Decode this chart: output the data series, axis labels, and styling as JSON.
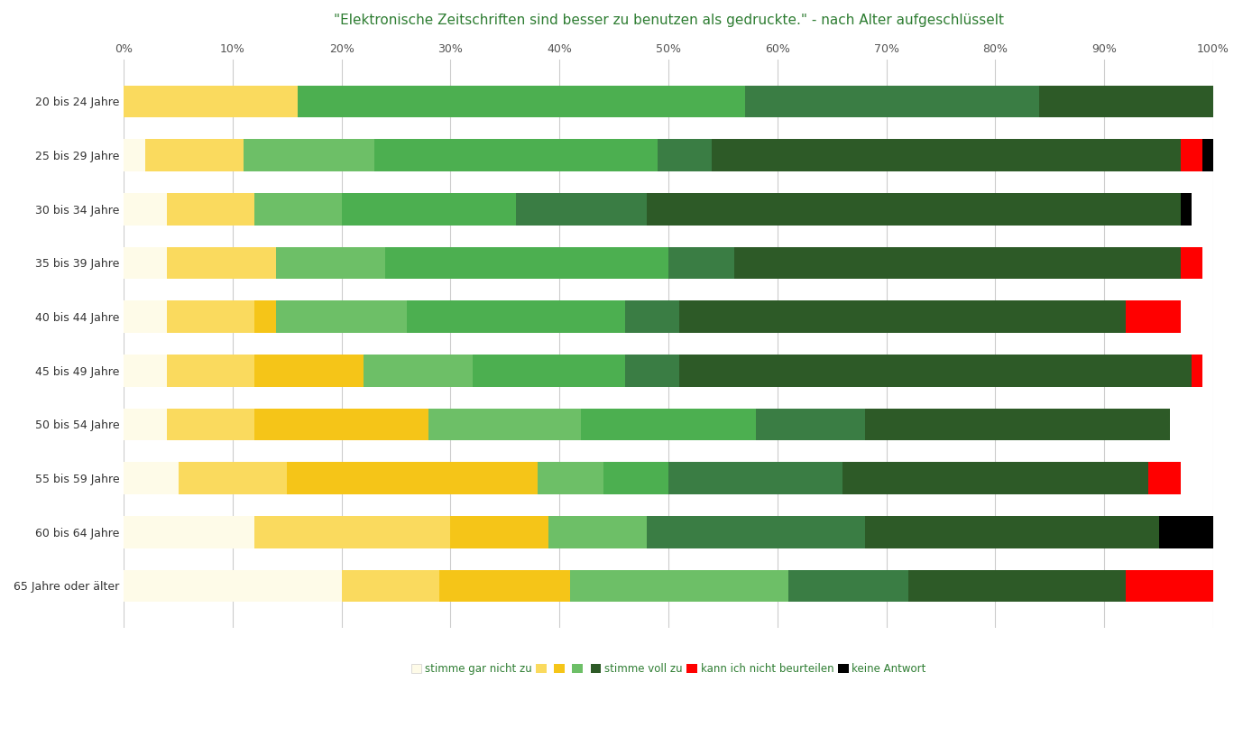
{
  "title": "\"Elektronische Zeitschriften sind besser zu benutzen als gedruckte.\" - nach Alter aufgeschlüsselt",
  "categories": [
    "20 bis 24 Jahre",
    "25 bis 29 Jahre",
    "30 bis 34 Jahre",
    "35 bis 39 Jahre",
    "40 bis 44 Jahre",
    "45 bis 49 Jahre",
    "50 bis 54 Jahre",
    "55 bis 59 Jahre",
    "60 bis 64 Jahre",
    "65 Jahre oder älter"
  ],
  "segments": {
    "col1_very_light": [
      0,
      2,
      4,
      4,
      4,
      4,
      4,
      5,
      12,
      20
    ],
    "col2_light": [
      16,
      9,
      8,
      10,
      8,
      8,
      8,
      10,
      18,
      9
    ],
    "col3_mid_yellow": [
      0,
      0,
      0,
      0,
      2,
      10,
      16,
      23,
      9,
      12
    ],
    "col4_light_green": [
      0,
      12,
      8,
      10,
      12,
      10,
      14,
      6,
      9,
      20
    ],
    "col5_mid_green": [
      41,
      26,
      16,
      26,
      20,
      14,
      16,
      6,
      0,
      0
    ],
    "col6_dark_green1": [
      27,
      5,
      12,
      6,
      5,
      5,
      10,
      16,
      20,
      11
    ],
    "col6_dark_green2": [
      16,
      43,
      49,
      41,
      41,
      47,
      28,
      28,
      27,
      20
    ],
    "col7_red": [
      0,
      2,
      0,
      2,
      5,
      1,
      0,
      3,
      0,
      8
    ],
    "col8_black": [
      0,
      1,
      1,
      0,
      0,
      0,
      0,
      0,
      5,
      0
    ]
  },
  "colors": {
    "col1_very_light": "#FEFBE8",
    "col2_light": "#FADA5E",
    "col3_mid_yellow": "#F5C518",
    "col4_light_green": "#6DBF67",
    "col5_mid_green": "#4CAF50",
    "col6_dark_green1": "#3A7D44",
    "col6_dark_green2": "#2D5A27",
    "col7_red": "#FF0000",
    "col8_black": "#000000"
  },
  "legend_entries": [
    {
      "label": "stimme gar nicht zu",
      "color": "#FEFBE8"
    },
    {
      "label": "",
      "color": "#FADA5E"
    },
    {
      "label": "",
      "color": "#F5C518"
    },
    {
      "label": "",
      "color": "#6DBF67"
    },
    {
      "label": "",
      "color": "#2D5A27"
    },
    {
      "label": "stimme voll zu",
      "color": "#2D5A27"
    },
    {
      "label": "kann ich nicht beurteilen",
      "color": "#FF0000"
    },
    {
      "label": "keine Antwort",
      "color": "#000000"
    }
  ],
  "background_color": "#FFFFFF",
  "title_color": "#2E7D32",
  "figsize": [
    13.78,
    8.17
  ],
  "dpi": 100
}
